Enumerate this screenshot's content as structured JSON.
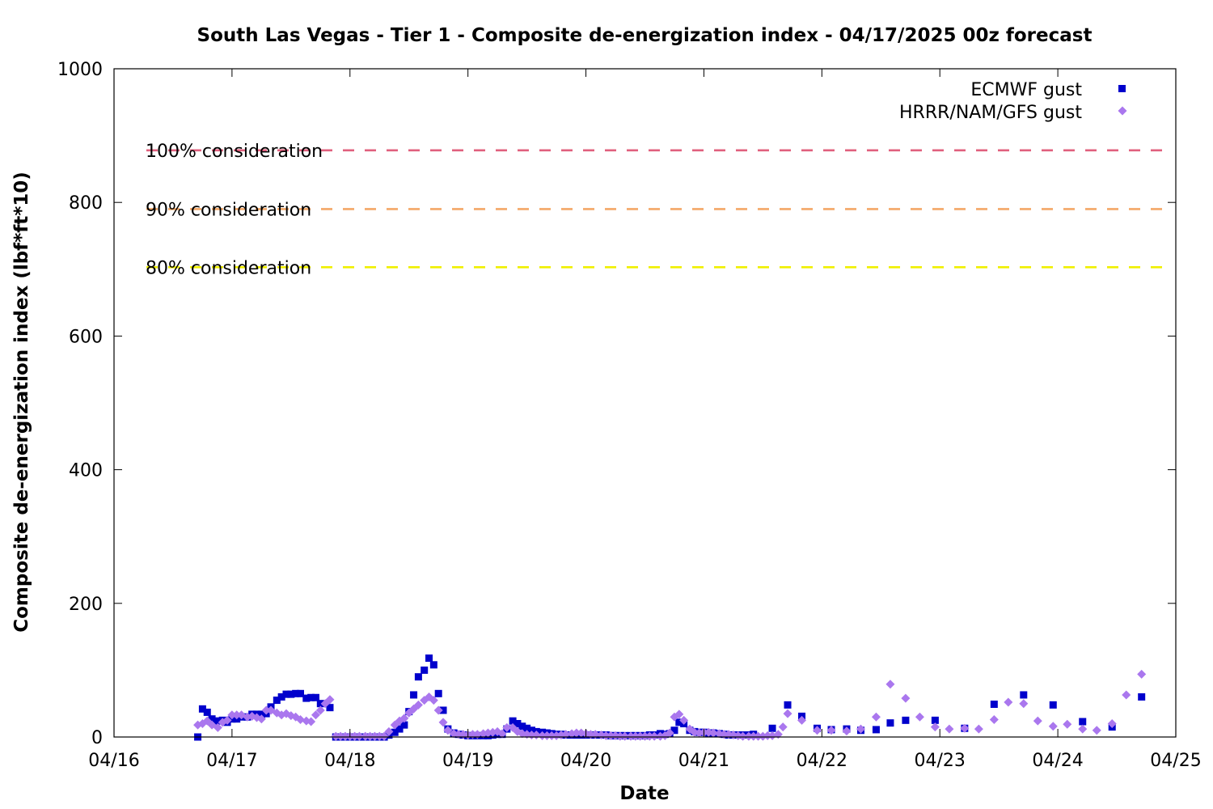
{
  "chart_data": {
    "type": "scatter",
    "title": "South Las Vegas - Tier 1 - Composite de-energization index - 04/17/2025 00z forecast",
    "xlabel": "Date",
    "ylabel": "Composite de-energization index (lbf*ft*10)",
    "x_unit": "date (04/MM, day fraction)",
    "xlim": [
      "04/16",
      "04/25"
    ],
    "ylim": [
      0,
      1000
    ],
    "x_ticks": [
      "04/16",
      "04/17",
      "04/18",
      "04/19",
      "04/20",
      "04/21",
      "04/22",
      "04/23",
      "04/24",
      "04/25"
    ],
    "y_ticks": [
      "0",
      "200",
      "400",
      "600",
      "800",
      "1000"
    ],
    "legend_position": "top-right",
    "thresholds": [
      {
        "label": "100% consideration",
        "value": 878,
        "color": "#e0607e"
      },
      {
        "label": "90% consideration",
        "value": 790,
        "color": "#f4a868"
      },
      {
        "label": "80% consideration",
        "value": 703,
        "color": "#f0f000"
      }
    ],
    "series": [
      {
        "name": "ECMWF gust",
        "color": "#0000cc",
        "marker": "square",
        "points": [
          [
            "04/16.71",
            0
          ],
          [
            "04/16.75",
            42
          ],
          [
            "04/16.79",
            37
          ],
          [
            "04/16.83",
            27
          ],
          [
            "04/16.88",
            24
          ],
          [
            "04/16.92",
            25
          ],
          [
            "04/16.96",
            22
          ],
          [
            "04/17.00",
            27
          ],
          [
            "04/17.04",
            27
          ],
          [
            "04/17.08",
            30
          ],
          [
            "04/17.13",
            30
          ],
          [
            "04/17.17",
            34
          ],
          [
            "04/17.21",
            34
          ],
          [
            "04/17.25",
            34
          ],
          [
            "04/17.29",
            35
          ],
          [
            "04/17.33",
            45
          ],
          [
            "04/17.38",
            55
          ],
          [
            "04/17.42",
            60
          ],
          [
            "04/17.46",
            64
          ],
          [
            "04/17.50",
            64
          ],
          [
            "04/17.54",
            65
          ],
          [
            "04/17.58",
            65
          ],
          [
            "04/17.63",
            58
          ],
          [
            "04/17.67",
            59
          ],
          [
            "04/17.71",
            59
          ],
          [
            "04/17.75",
            50
          ],
          [
            "04/17.83",
            44
          ],
          [
            "04/17.88",
            0
          ],
          [
            "04/17.92",
            0
          ],
          [
            "04/17.96",
            0
          ],
          [
            "04/18.00",
            0
          ],
          [
            "04/18.04",
            0
          ],
          [
            "04/18.08",
            0
          ],
          [
            "04/18.13",
            0
          ],
          [
            "04/18.17",
            0
          ],
          [
            "04/18.21",
            0
          ],
          [
            "04/18.25",
            0
          ],
          [
            "04/18.29",
            0
          ],
          [
            "04/18.33",
            3
          ],
          [
            "04/18.38",
            7
          ],
          [
            "04/18.42",
            12
          ],
          [
            "04/18.46",
            18
          ],
          [
            "04/18.50",
            38
          ],
          [
            "04/18.54",
            63
          ],
          [
            "04/18.58",
            90
          ],
          [
            "04/18.63",
            100
          ],
          [
            "04/18.67",
            118
          ],
          [
            "04/18.71",
            108
          ],
          [
            "04/18.75",
            65
          ],
          [
            "04/18.79",
            40
          ],
          [
            "04/18.83",
            12
          ],
          [
            "04/18.88",
            6
          ],
          [
            "04/18.92",
            4
          ],
          [
            "04/18.96",
            3
          ],
          [
            "04/19.00",
            2
          ],
          [
            "04/19.04",
            2
          ],
          [
            "04/19.08",
            2
          ],
          [
            "04/19.13",
            2
          ],
          [
            "04/19.17",
            2
          ],
          [
            "04/19.21",
            3
          ],
          [
            "04/19.25",
            4
          ],
          [
            "04/19.29",
            4
          ],
          [
            "04/19.33",
            12
          ],
          [
            "04/19.38",
            24
          ],
          [
            "04/19.42",
            20
          ],
          [
            "04/19.46",
            16
          ],
          [
            "04/19.50",
            13
          ],
          [
            "04/19.54",
            10
          ],
          [
            "04/19.58",
            8
          ],
          [
            "04/19.63",
            7
          ],
          [
            "04/19.67",
            6
          ],
          [
            "04/19.71",
            5
          ],
          [
            "04/19.75",
            4
          ],
          [
            "04/19.79",
            4
          ],
          [
            "04/19.83",
            3
          ],
          [
            "04/19.88",
            3
          ],
          [
            "04/19.92",
            3
          ],
          [
            "04/19.96",
            3
          ],
          [
            "04/20.00",
            3
          ],
          [
            "04/20.04",
            3
          ],
          [
            "04/20.08",
            3
          ],
          [
            "04/20.13",
            3
          ],
          [
            "04/20.17",
            3
          ],
          [
            "04/20.21",
            2
          ],
          [
            "04/20.25",
            2
          ],
          [
            "04/20.29",
            2
          ],
          [
            "04/20.33",
            2
          ],
          [
            "04/20.38",
            2
          ],
          [
            "04/20.42",
            2
          ],
          [
            "04/20.46",
            2
          ],
          [
            "04/20.50",
            2
          ],
          [
            "04/20.54",
            3
          ],
          [
            "04/20.58",
            3
          ],
          [
            "04/20.63",
            5
          ],
          [
            "04/20.67",
            4
          ],
          [
            "04/20.71",
            5
          ],
          [
            "04/20.75",
            10
          ],
          [
            "04/20.79",
            22
          ],
          [
            "04/20.83",
            20
          ],
          [
            "04/20.88",
            10
          ],
          [
            "04/20.92",
            8
          ],
          [
            "04/20.96",
            7
          ],
          [
            "04/21.00",
            7
          ],
          [
            "04/21.04",
            6
          ],
          [
            "04/21.08",
            6
          ],
          [
            "04/21.13",
            5
          ],
          [
            "04/21.17",
            4
          ],
          [
            "04/21.21",
            3
          ],
          [
            "04/21.25",
            3
          ],
          [
            "04/21.29",
            3
          ],
          [
            "04/21.33",
            3
          ],
          [
            "04/21.38",
            3
          ],
          [
            "04/21.42",
            4
          ],
          [
            "04/21.58",
            13
          ],
          [
            "04/21.71",
            48
          ],
          [
            "04/21.83",
            31
          ],
          [
            "04/21.96",
            13
          ],
          [
            "04/22.08",
            11
          ],
          [
            "04/22.21",
            12
          ],
          [
            "04/22.33",
            10
          ],
          [
            "04/22.46",
            11
          ],
          [
            "04/22.58",
            21
          ],
          [
            "04/22.71",
            25
          ],
          [
            "04/22.96",
            25
          ],
          [
            "04/23.21",
            13
          ],
          [
            "04/23.46",
            49
          ],
          [
            "04/23.71",
            63
          ],
          [
            "04/23.96",
            48
          ],
          [
            "04/24.21",
            23
          ],
          [
            "04/24.46",
            15
          ],
          [
            "04/24.71",
            60
          ]
        ]
      },
      {
        "name": "HRRR/NAM/GFS gust",
        "color": "#aa77ee",
        "marker": "diamond",
        "points": [
          [
            "04/16.71",
            18
          ],
          [
            "04/16.75",
            20
          ],
          [
            "04/16.79",
            24
          ],
          [
            "04/16.83",
            18
          ],
          [
            "04/16.88",
            14
          ],
          [
            "04/16.92",
            22
          ],
          [
            "04/16.96",
            25
          ],
          [
            "04/17.00",
            33
          ],
          [
            "04/17.04",
            33
          ],
          [
            "04/17.08",
            33
          ],
          [
            "04/17.13",
            30
          ],
          [
            "04/17.17",
            31
          ],
          [
            "04/17.21",
            29
          ],
          [
            "04/17.25",
            27
          ],
          [
            "04/17.29",
            40
          ],
          [
            "04/17.33",
            40
          ],
          [
            "04/17.38",
            36
          ],
          [
            "04/17.42",
            33
          ],
          [
            "04/17.46",
            35
          ],
          [
            "04/17.50",
            32
          ],
          [
            "04/17.54",
            30
          ],
          [
            "04/17.58",
            26
          ],
          [
            "04/17.63",
            24
          ],
          [
            "04/17.67",
            23
          ],
          [
            "04/17.71",
            33
          ],
          [
            "04/17.75",
            40
          ],
          [
            "04/17.79",
            50
          ],
          [
            "04/17.83",
            56
          ],
          [
            "04/17.88",
            1
          ],
          [
            "04/17.92",
            1
          ],
          [
            "04/17.96",
            1
          ],
          [
            "04/18.00",
            1
          ],
          [
            "04/18.04",
            1
          ],
          [
            "04/18.08",
            1
          ],
          [
            "04/18.13",
            1
          ],
          [
            "04/18.17",
            1
          ],
          [
            "04/18.21",
            1
          ],
          [
            "04/18.25",
            1
          ],
          [
            "04/18.29",
            1
          ],
          [
            "04/18.33",
            8
          ],
          [
            "04/18.38",
            18
          ],
          [
            "04/18.42",
            24
          ],
          [
            "04/18.46",
            28
          ],
          [
            "04/18.50",
            36
          ],
          [
            "04/18.54",
            42
          ],
          [
            "04/18.58",
            48
          ],
          [
            "04/18.63",
            55
          ],
          [
            "04/18.67",
            60
          ],
          [
            "04/18.71",
            55
          ],
          [
            "04/18.75",
            40
          ],
          [
            "04/18.79",
            22
          ],
          [
            "04/18.83",
            10
          ],
          [
            "04/18.88",
            5
          ],
          [
            "04/18.92",
            4
          ],
          [
            "04/18.96",
            4
          ],
          [
            "04/19.00",
            3
          ],
          [
            "04/19.04",
            4
          ],
          [
            "04/19.08",
            4
          ],
          [
            "04/19.13",
            5
          ],
          [
            "04/19.17",
            6
          ],
          [
            "04/19.21",
            7
          ],
          [
            "04/19.25",
            8
          ],
          [
            "04/19.29",
            5
          ],
          [
            "04/19.33",
            14
          ],
          [
            "04/19.38",
            14
          ],
          [
            "04/19.42",
            8
          ],
          [
            "04/19.46",
            5
          ],
          [
            "04/19.50",
            4
          ],
          [
            "04/19.54",
            3
          ],
          [
            "04/19.58",
            3
          ],
          [
            "04/19.63",
            2
          ],
          [
            "04/19.67",
            2
          ],
          [
            "04/19.71",
            2
          ],
          [
            "04/19.75",
            2
          ],
          [
            "04/19.79",
            3
          ],
          [
            "04/19.83",
            4
          ],
          [
            "04/19.88",
            5
          ],
          [
            "04/19.92",
            6
          ],
          [
            "04/19.96",
            6
          ],
          [
            "04/20.00",
            5
          ],
          [
            "04/20.04",
            4
          ],
          [
            "04/20.08",
            4
          ],
          [
            "04/20.13",
            3
          ],
          [
            "04/20.17",
            2
          ],
          [
            "04/20.21",
            2
          ],
          [
            "04/20.25",
            2
          ],
          [
            "04/20.29",
            1
          ],
          [
            "04/20.33",
            1
          ],
          [
            "04/20.38",
            1
          ],
          [
            "04/20.42",
            1
          ],
          [
            "04/20.46",
            1
          ],
          [
            "04/20.50",
            1
          ],
          [
            "04/20.54",
            1
          ],
          [
            "04/20.58",
            1
          ],
          [
            "04/20.63",
            1
          ],
          [
            "04/20.67",
            2
          ],
          [
            "04/20.71",
            6
          ],
          [
            "04/20.75",
            30
          ],
          [
            "04/20.79",
            34
          ],
          [
            "04/20.83",
            25
          ],
          [
            "04/20.88",
            12
          ],
          [
            "04/20.92",
            7
          ],
          [
            "04/20.96",
            6
          ],
          [
            "04/21.00",
            7
          ],
          [
            "04/21.04",
            7
          ],
          [
            "04/21.08",
            6
          ],
          [
            "04/21.13",
            5
          ],
          [
            "04/21.17",
            4
          ],
          [
            "04/21.21",
            4
          ],
          [
            "04/21.25",
            3
          ],
          [
            "04/21.29",
            2
          ],
          [
            "04/21.33",
            1
          ],
          [
            "04/21.38",
            1
          ],
          [
            "04/21.42",
            1
          ],
          [
            "04/21.46",
            1
          ],
          [
            "04/21.50",
            1
          ],
          [
            "04/21.54",
            2
          ],
          [
            "04/21.58",
            2
          ],
          [
            "04/21.63",
            4
          ],
          [
            "04/21.67",
            15
          ],
          [
            "04/21.71",
            35
          ],
          [
            "04/21.83",
            25
          ],
          [
            "04/21.96",
            10
          ],
          [
            "04/22.08",
            10
          ],
          [
            "04/22.21",
            9
          ],
          [
            "04/22.33",
            12
          ],
          [
            "04/22.46",
            30
          ],
          [
            "04/22.58",
            79
          ],
          [
            "04/22.71",
            58
          ],
          [
            "04/22.83",
            30
          ],
          [
            "04/22.96",
            15
          ],
          [
            "04/23.08",
            12
          ],
          [
            "04/23.21",
            13
          ],
          [
            "04/23.33",
            12
          ],
          [
            "04/23.46",
            26
          ],
          [
            "04/23.58",
            52
          ],
          [
            "04/23.71",
            50
          ],
          [
            "04/23.83",
            24
          ],
          [
            "04/23.96",
            16
          ],
          [
            "04/24.08",
            19
          ],
          [
            "04/24.21",
            12
          ],
          [
            "04/24.33",
            10
          ],
          [
            "04/24.46",
            20
          ],
          [
            "04/24.58",
            63
          ],
          [
            "04/24.71",
            94
          ]
        ]
      }
    ]
  }
}
